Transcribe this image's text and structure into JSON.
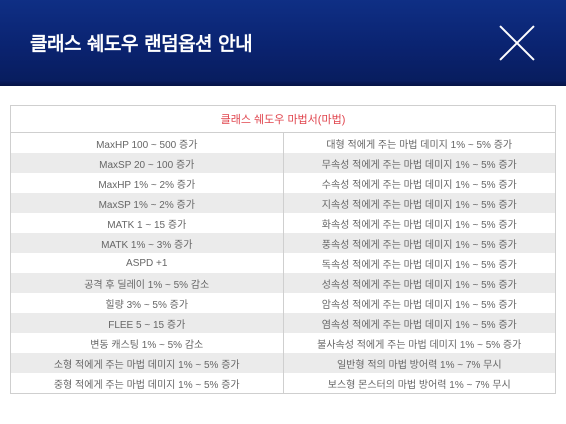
{
  "header": {
    "title": "클래스 쉐도우 랜덤옵션 안내"
  },
  "table": {
    "heading": "클래스 쉐도우 마법서(마법)",
    "rows": [
      [
        "MaxHP 100 ~ 500 증가",
        "대형 적에게 주는 마법 데미지 1% ~ 5% 증가"
      ],
      [
        "MaxSP 20 ~ 100 증가",
        "무속성 적에게 주는 마법 데미지 1% ~ 5% 증가"
      ],
      [
        "MaxHP 1% ~ 2% 증가",
        "수속성 적에게 주는 마법 데미지 1% ~ 5% 증가"
      ],
      [
        "MaxSP 1% ~ 2% 증가",
        "지속성 적에게 주는 마법 데미지 1% ~ 5% 증가"
      ],
      [
        "MATK 1 ~ 15 증가",
        "화속성 적에게 주는 마법 데미지 1% ~ 5% 증가"
      ],
      [
        "MATK 1% ~ 3% 증가",
        "풍속성 적에게 주는 마법 데미지 1% ~ 5% 증가"
      ],
      [
        "ASPD +1",
        "독속성 적에게 주는 마법 데미지 1% ~ 5% 증가"
      ],
      [
        "공격 후 딜레이 1% ~ 5% 감소",
        "성속성 적에게 주는 마법 데미지 1% ~ 5% 증가"
      ],
      [
        "힐량 3% ~ 5% 증가",
        "암속성 적에게 주는 마법 데미지 1% ~ 5% 증가"
      ],
      [
        "FLEE 5 ~ 15 증가",
        "염속성 적에게 주는 마법 데미지 1% ~ 5% 증가"
      ],
      [
        "변동 캐스팅 1% ~ 5% 감소",
        "불사속성 적에게 주는 마법 데미지 1% ~ 5% 증가"
      ],
      [
        "소형 적에게 주는 마법 데미지 1% ~ 5% 증가",
        "일반형 적의 마법 방어력 1% ~ 7% 무시"
      ],
      [
        "중형 적에게 주는 마법 데미지 1% ~ 5% 증가",
        "보스형 몬스터의 마법 방어력 1% ~ 7% 무시"
      ]
    ]
  }
}
